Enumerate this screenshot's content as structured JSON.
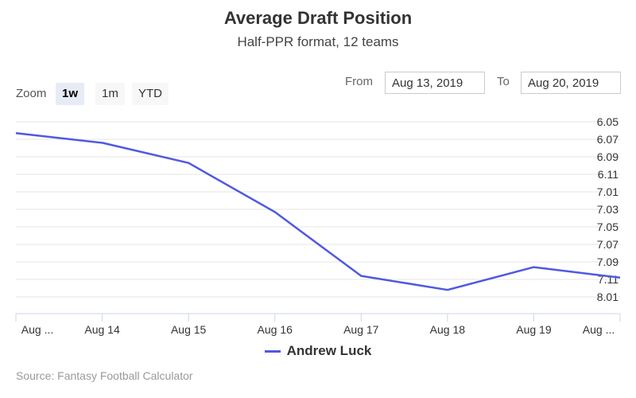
{
  "chart_data": {
    "type": "line",
    "title": "Average Draft Position",
    "subtitle": "Half-PPR format, 12 teams",
    "categories": [
      "Aug ...",
      "Aug 14",
      "Aug 15",
      "Aug 16",
      "Aug 17",
      "Aug 18",
      "Aug 19",
      "Aug ..."
    ],
    "y_ticks": [
      "6.05",
      "6.07",
      "6.09",
      "6.11",
      "7.01",
      "7.03",
      "7.05",
      "7.07",
      "7.09",
      "7.11",
      "8.01"
    ],
    "y_reversed": true,
    "series": [
      {
        "name": "Andrew Luck",
        "color": "#5059e0",
        "values": [
          6.063,
          6.074,
          6.097,
          7.033,
          7.106,
          7.122,
          7.096,
          7.108
        ]
      }
    ],
    "grid": true,
    "legend_position": "bottom-center"
  },
  "zoom": {
    "label": "Zoom",
    "buttons": [
      {
        "label": "1w",
        "active": true
      },
      {
        "label": "1m",
        "active": false
      },
      {
        "label": "YTD",
        "active": false
      }
    ]
  },
  "range": {
    "from_label": "From",
    "from_value": "Aug 13, 2019",
    "to_label": "To",
    "to_value": "Aug 20, 2019"
  },
  "credits": "Source: Fantasy Football Calculator"
}
